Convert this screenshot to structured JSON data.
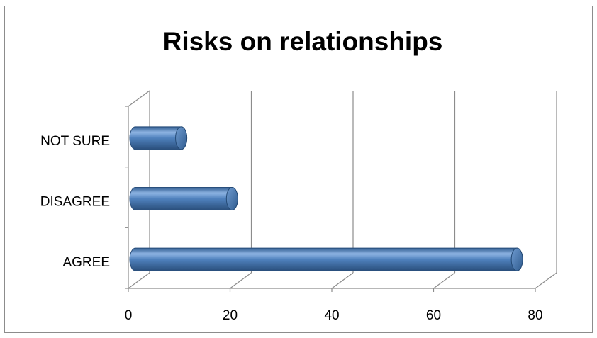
{
  "chart_data": {
    "type": "bar",
    "orientation": "horizontal",
    "style": "3d-cylinder",
    "title": "Risks on relationships",
    "categories": [
      "NOT SURE",
      "DISAGREE",
      "AGREE"
    ],
    "values": [
      9,
      19,
      75
    ],
    "xlim": [
      0,
      80
    ],
    "xticks": [
      0,
      20,
      40,
      60,
      80
    ],
    "grid": "vertical",
    "legend": "none",
    "colors": {
      "bar": "#4f81bd",
      "bar_dark": "#2f5b8f",
      "bar_light": "#8eb4e3",
      "grid": "#8c8c8c"
    }
  }
}
